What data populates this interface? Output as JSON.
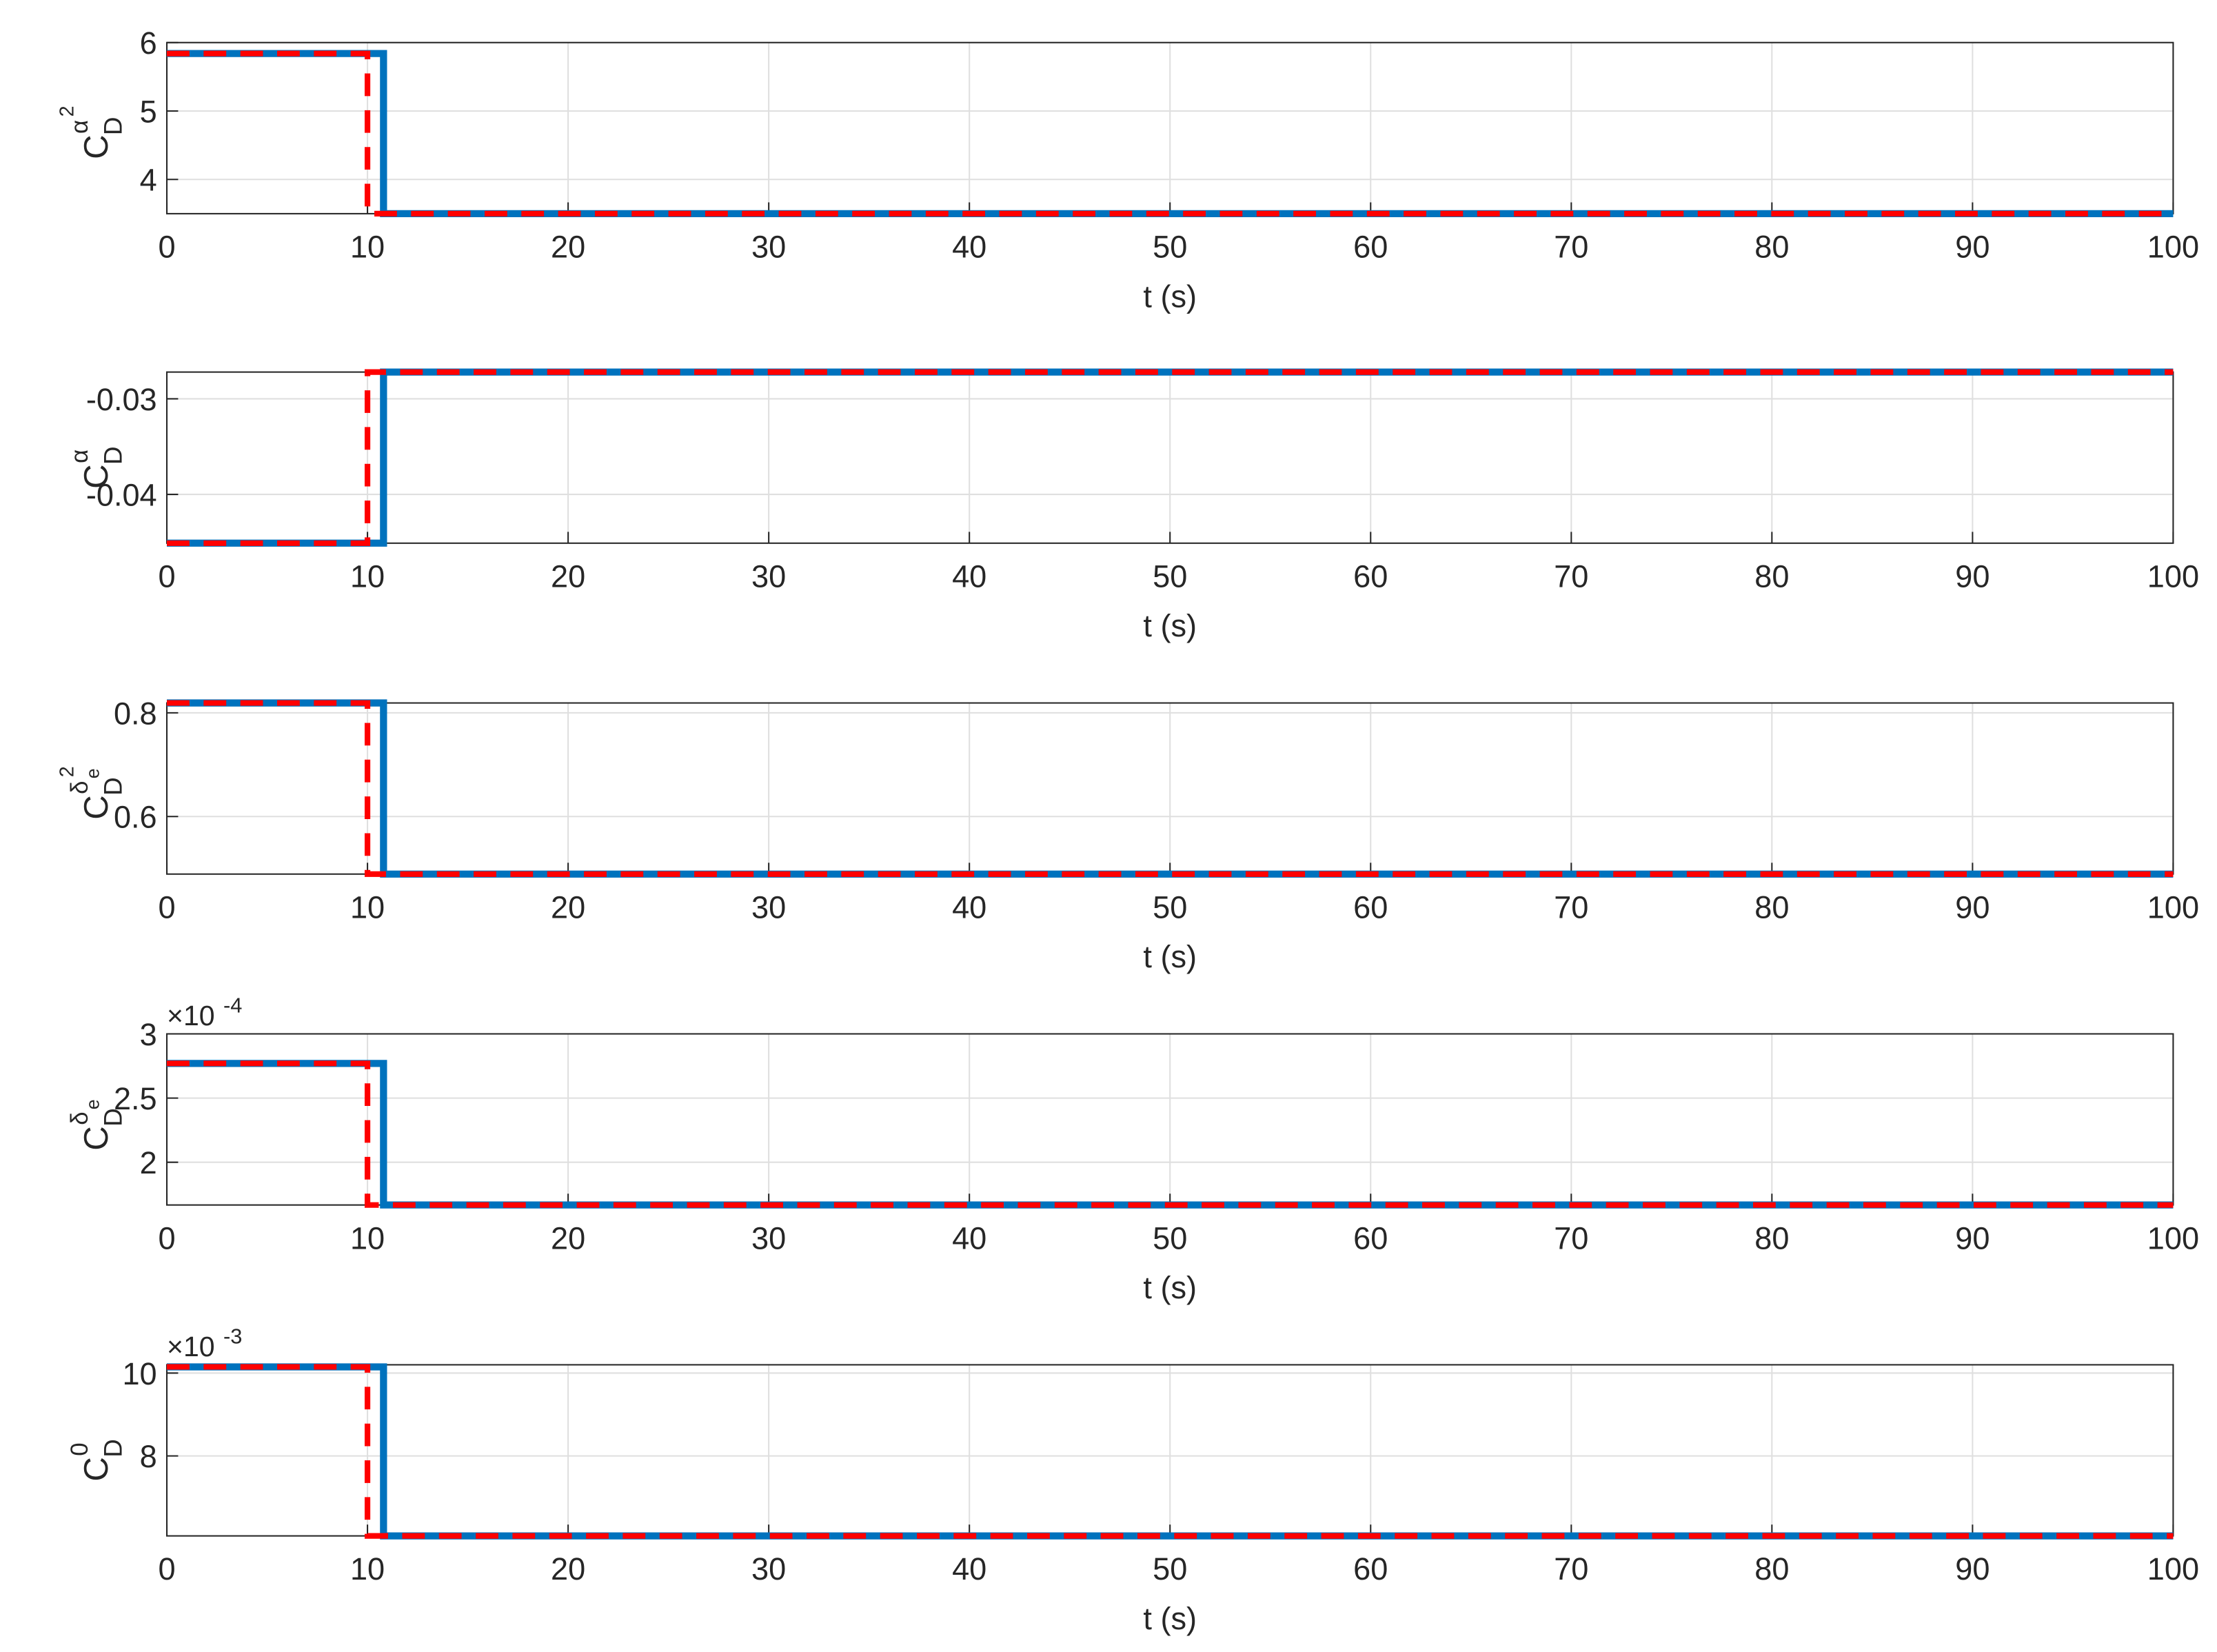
{
  "chart_data": [
    {
      "type": "line",
      "xlabel": "t (s)",
      "ylabel": {
        "main": "C",
        "sub": "D",
        "sup": "α",
        "sup_sup": "2"
      },
      "xlim": [
        0,
        100
      ],
      "xticks": [
        0,
        10,
        20,
        30,
        40,
        50,
        60,
        70,
        80,
        90,
        100
      ],
      "ylim": [
        3.5,
        6
      ],
      "yticks": [
        4,
        5,
        6
      ],
      "grid": true,
      "series": [
        {
          "color": "#0072bd",
          "style": "solid",
          "x": [
            0,
            10.8,
            10.8,
            100
          ],
          "values": [
            5.84,
            5.84,
            3.5,
            3.5
          ]
        },
        {
          "color": "#ff0000",
          "style": "dashed",
          "x": [
            0,
            10,
            10,
            100
          ],
          "values": [
            5.84,
            5.84,
            3.5,
            3.5
          ]
        }
      ]
    },
    {
      "type": "line",
      "xlabel": "t (s)",
      "ylabel": {
        "main": "C",
        "sub": "D",
        "sup": "α"
      },
      "xlim": [
        0,
        100
      ],
      "xticks": [
        0,
        10,
        20,
        30,
        40,
        50,
        60,
        70,
        80,
        90,
        100
      ],
      "ylim": [
        -0.0451,
        -0.0272
      ],
      "yticks": [
        -0.04,
        -0.03
      ],
      "grid": true,
      "series": [
        {
          "color": "#0072bd",
          "style": "solid",
          "x": [
            0,
            10.8,
            10.8,
            100
          ],
          "values": [
            -0.0451,
            -0.0451,
            -0.0272,
            -0.0272
          ]
        },
        {
          "color": "#ff0000",
          "style": "dashed",
          "x": [
            0,
            10,
            10,
            100
          ],
          "values": [
            -0.0451,
            -0.0451,
            -0.0272,
            -0.0272
          ]
        }
      ]
    },
    {
      "type": "line",
      "xlabel": "t (s)",
      "ylabel": {
        "main": "C",
        "sub": "D",
        "sup": "δ",
        "sup_sub": "e",
        "sup_sup": "2"
      },
      "xlim": [
        0,
        100
      ],
      "xticks": [
        0,
        10,
        20,
        30,
        40,
        50,
        60,
        70,
        80,
        90,
        100
      ],
      "ylim": [
        0.489,
        0.819
      ],
      "yticks": [
        0.6,
        0.8
      ],
      "grid": true,
      "series": [
        {
          "color": "#0072bd",
          "style": "solid",
          "x": [
            0,
            10.8,
            10.8,
            100
          ],
          "values": [
            0.819,
            0.819,
            0.489,
            0.489
          ]
        },
        {
          "color": "#ff0000",
          "style": "dashed",
          "x": [
            0,
            10,
            10,
            100
          ],
          "values": [
            0.819,
            0.819,
            0.489,
            0.489
          ]
        }
      ]
    },
    {
      "type": "line",
      "xlabel": "t (s)",
      "ylabel": {
        "main": "C",
        "sub": "D",
        "sup": "δ",
        "sup_sub": "e"
      },
      "y_multiplier": {
        "base": "×10",
        "exponent": "-4"
      },
      "xlim": [
        0,
        100
      ],
      "xticks": [
        0,
        10,
        20,
        30,
        40,
        50,
        60,
        70,
        80,
        90,
        100
      ],
      "ylim": [
        1.667,
        3
      ],
      "yticks": [
        2,
        2.5,
        3
      ],
      "grid": true,
      "series": [
        {
          "color": "#0072bd",
          "style": "solid",
          "x": [
            0,
            10.8,
            10.8,
            100
          ],
          "values": [
            2.77,
            2.77,
            1.667,
            1.667
          ]
        },
        {
          "color": "#ff0000",
          "style": "dashed",
          "x": [
            0,
            10,
            10,
            100
          ],
          "values": [
            2.77,
            2.77,
            1.667,
            1.667
          ]
        }
      ]
    },
    {
      "type": "line",
      "xlabel": "t (s)",
      "ylabel": {
        "main": "C",
        "sub": "D",
        "sup": "0"
      },
      "y_multiplier": {
        "base": "×10",
        "exponent": "-3"
      },
      "xlim": [
        0,
        100
      ],
      "xticks": [
        0,
        10,
        20,
        30,
        40,
        50,
        60,
        70,
        80,
        90,
        100
      ],
      "ylim": [
        6.07,
        10.2
      ],
      "yticks": [
        8,
        10
      ],
      "grid": true,
      "series": [
        {
          "color": "#0072bd",
          "style": "solid",
          "x": [
            0,
            10.8,
            10.8,
            100
          ],
          "values": [
            10.15,
            10.15,
            6.07,
            6.07
          ]
        },
        {
          "color": "#ff0000",
          "style": "dashed",
          "x": [
            0,
            10,
            10,
            100
          ],
          "values": [
            10.15,
            10.15,
            6.07,
            6.07
          ]
        }
      ]
    }
  ]
}
